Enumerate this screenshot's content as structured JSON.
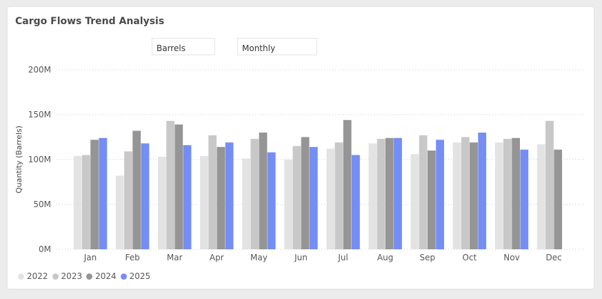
{
  "title": "Cargo Flows Trend Analysis",
  "slicers": {
    "unit": "Barrels",
    "period": "Monthly"
  },
  "chart_data": {
    "type": "bar",
    "title": "Cargo Flows Trend Analysis",
    "xlabel": "",
    "ylabel": "Quantity (Barrels)",
    "ylim": [
      0,
      200000000
    ],
    "yticks": [
      0,
      50000000,
      100000000,
      150000000,
      200000000
    ],
    "ytick_labels": [
      "0M",
      "50M",
      "100M",
      "150M",
      "200M"
    ],
    "grid": "dotted horizontal",
    "legend_position": "bottom-left",
    "categories": [
      "Jan",
      "Feb",
      "Mar",
      "Apr",
      "May",
      "Jun",
      "Jul",
      "Aug",
      "Sep",
      "Oct",
      "Nov",
      "Dec"
    ],
    "series": [
      {
        "name": "2022",
        "color": "#e3e3e3",
        "values": [
          104000000,
          82000000,
          103000000,
          104000000,
          101000000,
          100000000,
          112000000,
          118000000,
          106000000,
          119000000,
          119000000,
          117000000
        ]
      },
      {
        "name": "2023",
        "color": "#c8c8c8",
        "values": [
          105000000,
          109000000,
          143000000,
          127000000,
          123000000,
          115000000,
          119000000,
          123000000,
          127000000,
          125000000,
          123000000,
          143000000
        ]
      },
      {
        "name": "2024",
        "color": "#959595",
        "values": [
          122000000,
          132000000,
          139000000,
          114000000,
          130000000,
          125000000,
          144000000,
          124000000,
          110000000,
          119000000,
          124000000,
          111000000
        ]
      },
      {
        "name": "2025",
        "color": "#748ef5",
        "values": [
          124000000,
          118000000,
          116000000,
          119000000,
          108000000,
          114000000,
          105000000,
          124000000,
          122000000,
          130000000,
          111000000,
          null
        ]
      }
    ]
  }
}
